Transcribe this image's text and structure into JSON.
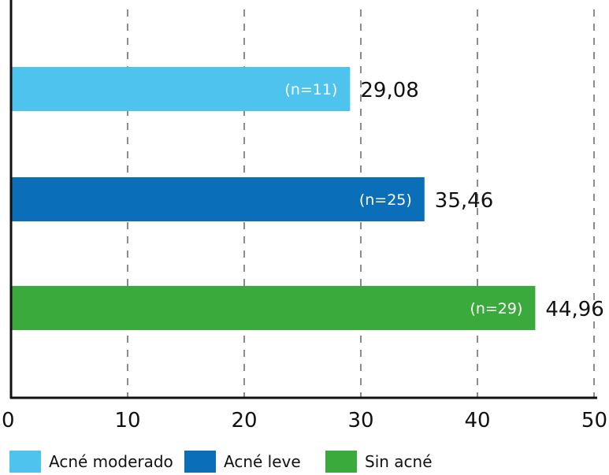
{
  "chart_data": {
    "type": "bar",
    "orientation": "horizontal",
    "categories": [
      "Acné moderado",
      "Acné leve",
      "Sin acné"
    ],
    "values": [
      29.08,
      35.46,
      44.96
    ],
    "value_labels": [
      "29,08",
      "35,46",
      "44,96"
    ],
    "inner_labels": [
      "(n=11)",
      "(n=25)",
      "(n=29)"
    ],
    "colors": [
      "#4dc3ee",
      "#0a6fb8",
      "#3aaa3c"
    ],
    "xlim": [
      0,
      50
    ],
    "xticks": [
      0,
      10,
      20,
      30,
      40,
      50
    ],
    "xtick_labels": [
      "0",
      "10",
      "20",
      "30",
      "40",
      "50"
    ],
    "grid": "vertical dashed",
    "legend_position": "bottom"
  },
  "legend": [
    {
      "label": "Acné moderado",
      "color": "#4dc3ee"
    },
    {
      "label": "Acné leve",
      "color": "#0a6fb8"
    },
    {
      "label": "Sin acné",
      "color": "#3aaa3c"
    }
  ]
}
